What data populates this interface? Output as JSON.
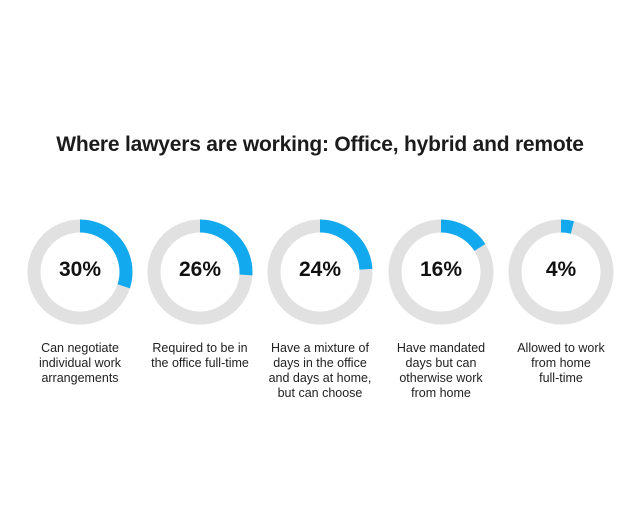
{
  "title": "Where lawyers are working: Office, hybrid and remote",
  "colors": {
    "accent": "#12a9ee",
    "track": "#e1e1e1"
  },
  "chart_data": {
    "type": "donut",
    "title": "Where lawyers are working: Office, hybrid and remote",
    "items": [
      {
        "value": 30,
        "label": "30%",
        "description": "Can negotiate\nindividual work\narrangements"
      },
      {
        "value": 26,
        "label": "26%",
        "description": "Required to be in\nthe office full-time"
      },
      {
        "value": 24,
        "label": "24%",
        "description": "Have a mixture of\ndays in the office\nand days at home,\nbut can choose"
      },
      {
        "value": 16,
        "label": "16%",
        "description": "Have mandated\ndays but can\notherwise work\nfrom home"
      },
      {
        "value": 4,
        "label": "4%",
        "description": "Allowed to work\nfrom home\nfull-time"
      }
    ]
  }
}
